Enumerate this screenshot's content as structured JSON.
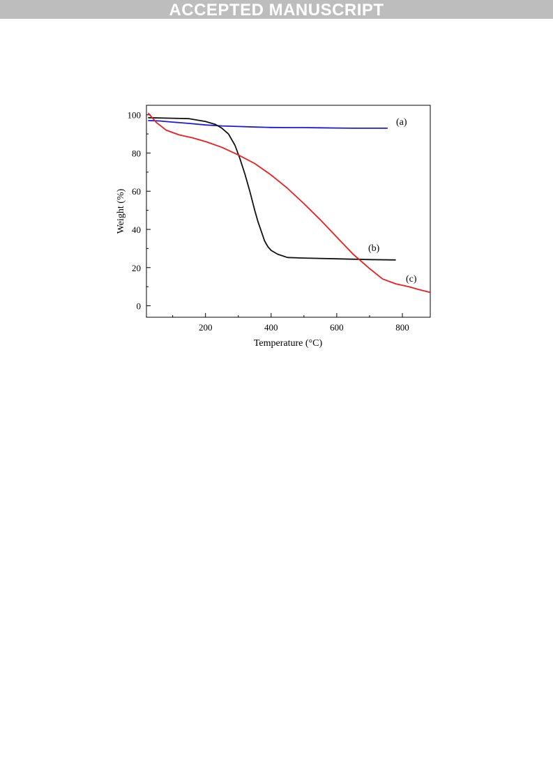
{
  "banner": {
    "text": "ACCEPTED MANUSCRIPT"
  },
  "chart_data": {
    "type": "line",
    "title": "",
    "xlabel": "Temperature (°C)",
    "ylabel": "Weight (%)",
    "xlim": [
      20,
      885
    ],
    "ylim": [
      -6,
      105
    ],
    "xticks": [
      200,
      400,
      600,
      800
    ],
    "yticks": [
      0,
      20,
      40,
      60,
      80,
      100
    ],
    "grid": false,
    "legend": "none",
    "series": [
      {
        "name": "(a)",
        "color": "#1a1ad6",
        "x": [
          25,
          60,
          100,
          150,
          200,
          250,
          300,
          350,
          400,
          450,
          500,
          550,
          600,
          650,
          700,
          755
        ],
        "y": [
          97,
          96.8,
          96.2,
          95.5,
          94.7,
          94.2,
          93.9,
          93.6,
          93.4,
          93.3,
          93.3,
          93.2,
          93.1,
          93.0,
          93.0,
          93.0
        ]
      },
      {
        "name": "(b)",
        "color": "#111111",
        "x": [
          25,
          100,
          150,
          200,
          230,
          250,
          270,
          290,
          305,
          320,
          335,
          350,
          360,
          370,
          380,
          390,
          400,
          420,
          450,
          500,
          600,
          700,
          780
        ],
        "y": [
          98.5,
          98.2,
          98,
          96.5,
          95,
          93,
          90,
          84,
          77,
          69,
          60,
          50,
          44,
          39,
          34,
          31,
          29,
          27,
          25.3,
          25,
          24.6,
          24.2,
          24
        ]
      },
      {
        "name": "(c)",
        "color": "#ee1c1c",
        "x": [
          25,
          50,
          80,
          120,
          160,
          200,
          250,
          300,
          350,
          400,
          450,
          500,
          550,
          600,
          650,
          700,
          740,
          780,
          820,
          850,
          885
        ],
        "y": [
          101,
          96,
          92,
          89.5,
          88,
          86,
          83,
          79,
          74.5,
          68.5,
          61.5,
          53.5,
          45,
          36,
          27,
          19.5,
          14,
          11.5,
          10,
          8.5,
          7
        ]
      }
    ]
  }
}
